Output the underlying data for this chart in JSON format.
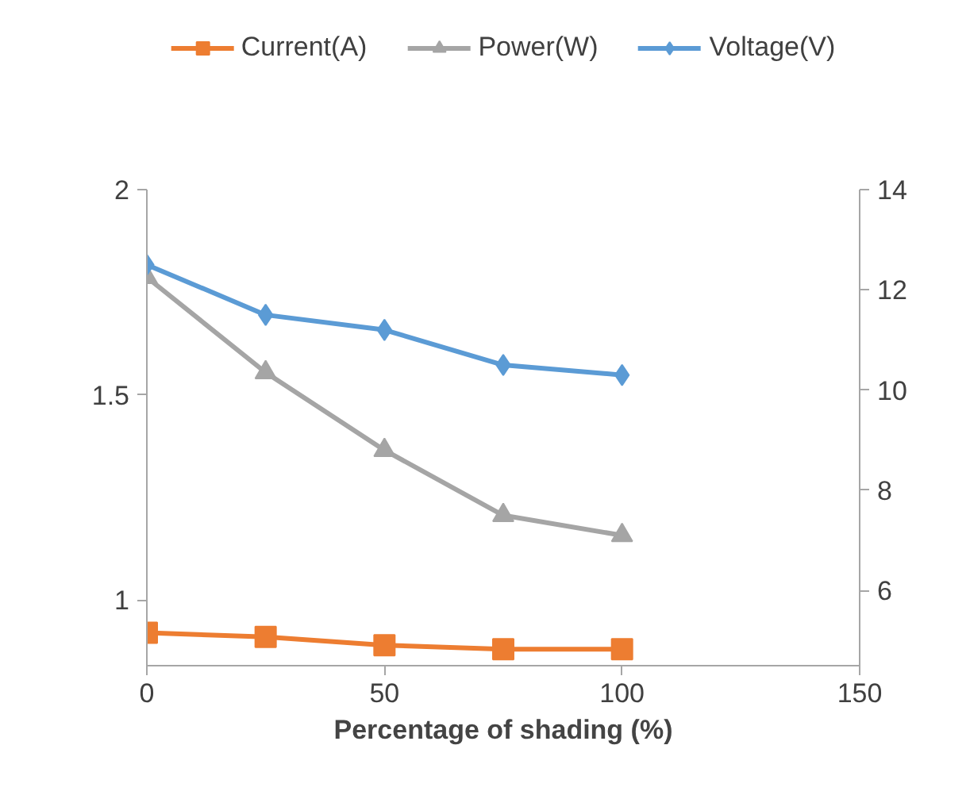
{
  "chart_data": {
    "type": "line",
    "xlabel": "Percentage of shading (%)",
    "x": [
      0,
      25,
      50,
      75,
      100
    ],
    "xlim": [
      0,
      150
    ],
    "xticks": [
      0,
      50,
      100,
      150
    ],
    "ylim": [
      0.84,
      2.0
    ],
    "yticks": [
      1,
      1.5,
      2
    ],
    "y2lim": [
      4.5,
      14
    ],
    "y2ticks": [
      6,
      8,
      10,
      12,
      14
    ],
    "legend": "top",
    "grid": false,
    "series": [
      {
        "name": "Current(A)",
        "color": "#ed7d31",
        "marker": "square",
        "values": [
          0.92,
          0.91,
          0.89,
          0.88,
          0.88
        ]
      },
      {
        "name": "Power(W)",
        "color": "#a5a5a5",
        "marker": "triangle",
        "axis": "y2",
        "values": [
          12.25,
          10.35,
          8.8,
          7.5,
          7.1
        ]
      },
      {
        "name": "Voltage(V)",
        "color": "#5b9bd5",
        "marker": "diamond",
        "axis": "y2",
        "values": [
          12.5,
          11.5,
          11.2,
          10.5,
          10.3
        ]
      }
    ]
  }
}
